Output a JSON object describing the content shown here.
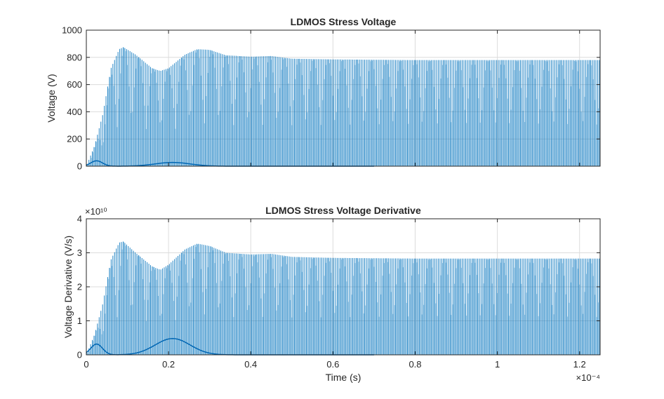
{
  "chart_data": [
    {
      "type": "line",
      "title": "LDMOS Stress Voltage",
      "xlabel": "",
      "ylabel": "Voltage (V)",
      "xlim": [
        0,
        1.25
      ],
      "ylim": [
        0,
        1000
      ],
      "x_ticks": [
        "0",
        "0.2",
        "0.4",
        "0.6",
        "0.8",
        "1",
        "1.2"
      ],
      "y_ticks": [
        "0",
        "200",
        "400",
        "600",
        "800",
        "1000"
      ],
      "y_exponent_label": "",
      "x_exponent_label": "",
      "x_tick_labels_visible": false,
      "grid": true,
      "color": "#0072bd",
      "series": [
        {
          "description": "peak envelope of switching spikes",
          "x": [
            0,
            0.02,
            0.04,
            0.06,
            0.08,
            0.09,
            0.12,
            0.16,
            0.18,
            0.2,
            0.24,
            0.27,
            0.3,
            0.34,
            0.4,
            0.45,
            0.5,
            0.6,
            0.8,
            1.0,
            1.25
          ],
          "y": [
            0,
            150,
            380,
            720,
            860,
            875,
            820,
            720,
            700,
            720,
            820,
            860,
            855,
            815,
            805,
            810,
            790,
            785,
            780,
            780,
            780
          ]
        }
      ]
    },
    {
      "type": "line",
      "title": "LDMOS Stress Voltage Derivative",
      "xlabel": "Time (s)",
      "ylabel": "Voltage Derivative (V/s)",
      "xlim": [
        0,
        1.25
      ],
      "ylim": [
        0,
        4
      ],
      "x_ticks": [
        "0",
        "0.2",
        "0.4",
        "0.6",
        "0.8",
        "1",
        "1.2"
      ],
      "y_ticks": [
        "0",
        "1",
        "2",
        "3",
        "4"
      ],
      "y_exponent_label": "×10¹⁰",
      "x_exponent_label": "×10⁻⁴",
      "x_tick_labels_visible": true,
      "grid": true,
      "color": "#0072bd",
      "series": [
        {
          "description": "peak envelope of derivative spikes",
          "x": [
            0,
            0.02,
            0.04,
            0.06,
            0.08,
            0.09,
            0.12,
            0.16,
            0.18,
            0.2,
            0.24,
            0.27,
            0.3,
            0.34,
            0.4,
            0.45,
            0.5,
            0.6,
            0.8,
            1.0,
            1.25
          ],
          "y": [
            0,
            0.6,
            1.5,
            2.8,
            3.3,
            3.33,
            3.0,
            2.6,
            2.5,
            2.65,
            3.1,
            3.27,
            3.2,
            3.0,
            2.95,
            2.97,
            2.88,
            2.85,
            2.83,
            2.83,
            2.83
          ]
        }
      ]
    }
  ]
}
